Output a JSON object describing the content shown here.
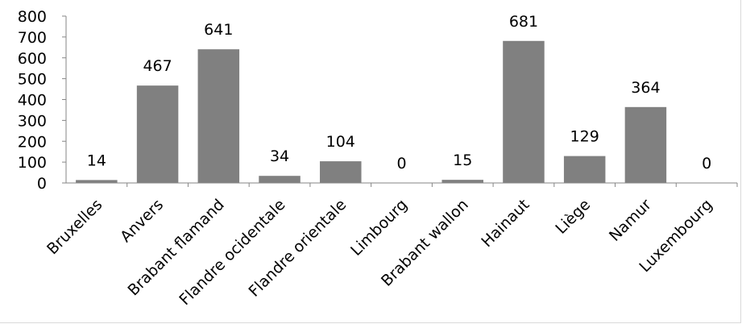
{
  "chart_data": {
    "type": "bar",
    "title": "",
    "xlabel": "",
    "ylabel": "",
    "categories": [
      "Bruxelles",
      "Anvers",
      "Brabant flamand",
      "Flandre ocidentale",
      "Flandre orientale",
      "Limbourg",
      "Brabant wallon",
      "Hainaut",
      "Liège",
      "Namur",
      "Luxembourg"
    ],
    "values": [
      14,
      467,
      641,
      34,
      104,
      0,
      15,
      681,
      129,
      364,
      0
    ],
    "data_labels": [
      "14",
      "467",
      "641",
      "34",
      "104",
      "0",
      "15",
      "681",
      "129",
      "364",
      "0"
    ],
    "ylim": [
      0,
      800
    ],
    "yticks": [
      0,
      100,
      200,
      300,
      400,
      500,
      600,
      700,
      800
    ],
    "ytick_labels": [
      "0",
      "100",
      "200",
      "300",
      "400",
      "500",
      "600",
      "700",
      "800"
    ],
    "grid": false,
    "legend": "none",
    "bar_color": "#808080"
  }
}
